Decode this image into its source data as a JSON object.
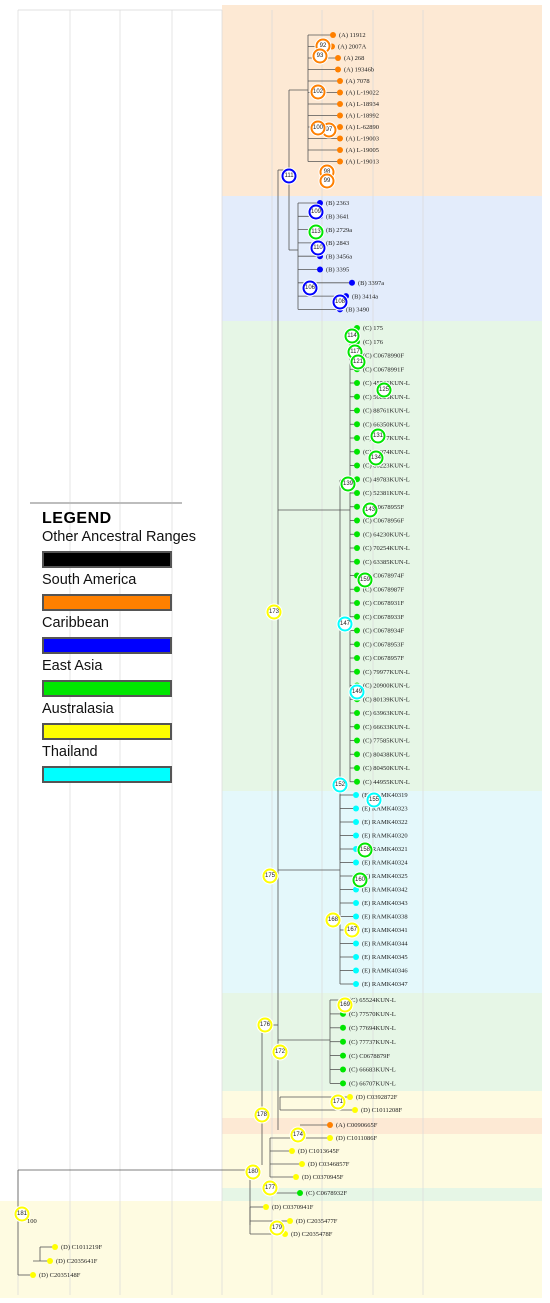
{
  "legend": {
    "title": "LEGEND",
    "entries": [
      {
        "label": "Other Ancestral Ranges",
        "color": "#000000"
      },
      {
        "label": "South America",
        "color": "#ff8000"
      },
      {
        "label": "Caribbean",
        "color": "#0000ff"
      },
      {
        "label": "East Asia",
        "color": "#00e600"
      },
      {
        "label": "Australasia",
        "color": "#ffff00"
      },
      {
        "label": "Thailand",
        "color": "#00ffff"
      }
    ]
  },
  "region_colors": {
    "A": "#ff8000",
    "B": "#0000ff",
    "C": "#00e600",
    "D": "#ffff00",
    "E": "#00ffff"
  },
  "band_colors": {
    "A": "#fde9d4",
    "B": "#e3ecfb",
    "C": "#e6f6e6",
    "D": "#fefbe1",
    "E": "#e4f8fb"
  },
  "clades": [
    {
      "id": "A1",
      "code": "A",
      "tips": [
        "(A) 11912",
        "(A) 2007A",
        "(A) 268",
        "(A) 19346b",
        "(A) 7078",
        "(A) L-19022",
        "(A) L-18934",
        "(A) L-18992",
        "(A) L-62890",
        "(A) L-19003",
        "(A) L-19005",
        "(A) L-19013"
      ]
    },
    {
      "id": "B1",
      "code": "B",
      "tips": [
        "(B) 2363",
        "(B) 3641",
        "(B) 2729a",
        "(B) 2843",
        "(B) 3456a",
        "(B) 3395",
        "(B) 3397a",
        "(B) 3414a",
        "(B) 3490"
      ]
    },
    {
      "id": "C1",
      "code": "C",
      "tips": [
        "(C) 175",
        "(C) 176",
        "(C) C0678990F",
        "(C) C0678991F",
        "(C) 45566KUN-L",
        "(C) 50826KUN-L",
        "(C) 88761KUN-L",
        "(C) 66350KUN-L",
        "(C) 85207KUN-L",
        "(C) 80074KUN-L",
        "(C) 80223KUN-L",
        "(C) 49783KUN-L",
        "(C) 52381KUN-L",
        "(C) C0678955F",
        "(C) C0678956F",
        "(C) 64230KUN-L",
        "(C) 70254KUN-L",
        "(C) 63385KUN-L",
        "(C) C0678974F",
        "(C) C0678987F",
        "(C) C0678931F",
        "(C) C0678933F",
        "(C) C0678934F",
        "(C) C0678953F",
        "(C) C0678957F",
        "(C) 79977KUN-L",
        "(C) 20900KUN-L",
        "(C) 80139KUN-L",
        "(C) 63963KUN-L",
        "(C) 66633KUN-L",
        "(C) 77585KUN-L",
        "(C) 80438KUN-L",
        "(C) 80450KUN-L",
        "(C) 44955KUN-L"
      ]
    },
    {
      "id": "E1",
      "code": "E",
      "tips": [
        "(E) RAMK40319",
        "(E) RAMK40323",
        "(E) RAMK40322",
        "(E) RAMK40320",
        "(E) RAMK40321",
        "(E) RAMK40324",
        "(E) RAMK40325",
        "(E) RAMK40342",
        "(E) RAMK40343",
        "(E) RAMK40338",
        "(E) RAMK40341",
        "(E) RAMK40344",
        "(E) RAMK40345",
        "(E) RAMK40346",
        "(E) RAMK40347"
      ]
    },
    {
      "id": "C2",
      "code": "C",
      "tips": [
        "(C) 65524KUN-L",
        "(C) 77570KUN-L",
        "(C) 77694KUN-L",
        "(C) 77737KUN-L",
        "(C) C0678879F",
        "(C) 66683KUN-L",
        "(C) 66707KUN-L"
      ]
    },
    {
      "id": "D1",
      "code": "D",
      "tips": [
        "(D) C0392872F",
        "(D) C1011208F"
      ]
    },
    {
      "id": "A2",
      "code": "A",
      "tips": [
        "(A) C0090665F"
      ]
    },
    {
      "id": "D2",
      "code": "D",
      "tips": [
        "(D) C1011086F",
        "(D) C1013645F",
        "(D) C0346857F",
        "(D) C0370945F"
      ]
    },
    {
      "id": "C3",
      "code": "C",
      "tips": [
        "(C) C0678932F"
      ]
    },
    {
      "id": "D3",
      "code": "D",
      "tips": [
        "(D) C0370941F",
        "(D) C2035477F",
        "(D) C2035478F",
        "(D) C1011219F",
        "(D) C2035641F",
        "(D) C2035148F"
      ]
    }
  ],
  "node_labels": [
    {
      "text": "92",
      "code": "A"
    },
    {
      "text": "93",
      "code": "A"
    },
    {
      "text": "102",
      "code": "A"
    },
    {
      "text": "97",
      "code": "A"
    },
    {
      "text": "100",
      "code": "A"
    },
    {
      "text": "98",
      "code": "A"
    },
    {
      "text": "99",
      "code": "A"
    },
    {
      "text": "111",
      "code": "B"
    },
    {
      "text": "109",
      "code": "B"
    },
    {
      "text": "110",
      "code": "B"
    },
    {
      "text": "106",
      "code": "B"
    },
    {
      "text": "108",
      "code": "B"
    },
    {
      "text": "113",
      "code": "C"
    },
    {
      "text": "114",
      "code": "C"
    },
    {
      "text": "117",
      "code": "C"
    },
    {
      "text": "121",
      "code": "C"
    },
    {
      "text": "125",
      "code": "C"
    },
    {
      "text": "131",
      "code": "C"
    },
    {
      "text": "134",
      "code": "C"
    },
    {
      "text": "139",
      "code": "C"
    },
    {
      "text": "143",
      "code": "C"
    },
    {
      "text": "159",
      "code": "C"
    },
    {
      "text": "147",
      "code": "E"
    },
    {
      "text": "149",
      "code": "E"
    },
    {
      "text": "152",
      "code": "E"
    },
    {
      "text": "155",
      "code": "E"
    },
    {
      "text": "158",
      "code": "C"
    },
    {
      "text": "160",
      "code": "C"
    },
    {
      "text": "167",
      "code": "D"
    },
    {
      "text": "168",
      "code": "D"
    },
    {
      "text": "169",
      "code": "D"
    },
    {
      "text": "171",
      "code": "D"
    },
    {
      "text": "172",
      "code": "D"
    },
    {
      "text": "173",
      "code": "D"
    },
    {
      "text": "174",
      "code": "D"
    },
    {
      "text": "175",
      "code": "D"
    },
    {
      "text": "176",
      "code": "D"
    },
    {
      "text": "177",
      "code": "D"
    },
    {
      "text": "178",
      "code": "D"
    },
    {
      "text": "179",
      "code": "D"
    },
    {
      "text": "180",
      "code": "D"
    },
    {
      "text": "181",
      "code": "D"
    }
  ],
  "support_label": "100"
}
